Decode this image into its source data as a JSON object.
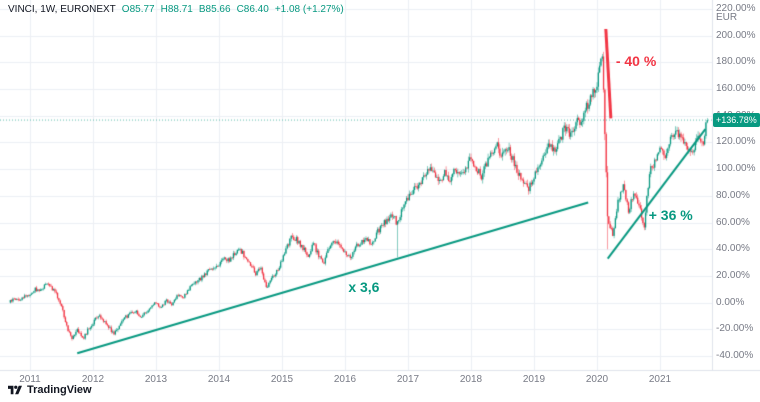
{
  "legend": {
    "symbol": "VINCI, 1W, EURONEXT",
    "open": "O85.77",
    "high": "H88.71",
    "low": "B85.66",
    "close": "C86.40",
    "change": "+1.08 (+1.27%)"
  },
  "axis": {
    "currency": "EUR"
  },
  "footer": {
    "logo_text": "TradingView"
  },
  "chart_data": {
    "type": "candlestick",
    "symbol": "VINCI",
    "interval": "1W",
    "exchange": "EURONEXT",
    "scale": "percent-change",
    "ylim": [
      -40,
      220
    ],
    "y_ticks": [
      {
        "value": 220,
        "label": "220.00%"
      },
      {
        "value": 200,
        "label": "200.00%"
      },
      {
        "value": 180,
        "label": "180.00%"
      },
      {
        "value": 160,
        "label": "160.00%"
      },
      {
        "value": 140,
        "label": "140.00%"
      },
      {
        "value": 120,
        "label": "120.00%"
      },
      {
        "value": 100,
        "label": "100.00%"
      },
      {
        "value": 80,
        "label": "80.00%"
      },
      {
        "value": 60,
        "label": "60.00%"
      },
      {
        "value": 40,
        "label": "40.00%"
      },
      {
        "value": 20,
        "label": "20.00%"
      },
      {
        "value": 0,
        "label": "0.00%"
      },
      {
        "value": -20,
        "label": "-20.00%"
      },
      {
        "value": -40,
        "label": "-40.00%"
      }
    ],
    "x_ticks": [
      {
        "value": 2011,
        "label": "2011"
      },
      {
        "value": 2012,
        "label": "2012"
      },
      {
        "value": 2013,
        "label": "2013"
      },
      {
        "value": 2014,
        "label": "2014"
      },
      {
        "value": 2015,
        "label": "2015"
      },
      {
        "value": 2016,
        "label": "2016"
      },
      {
        "value": 2017,
        "label": "2017"
      },
      {
        "value": 2018,
        "label": "2018"
      },
      {
        "value": 2019,
        "label": "2019"
      },
      {
        "value": 2020,
        "label": "2020"
      },
      {
        "value": 2021,
        "label": "2021"
      }
    ],
    "ohlc": {
      "open": 85.77,
      "high": 88.71,
      "low": 85.66,
      "close": 86.4,
      "change": 1.08,
      "change_pct": 1.27
    },
    "current_value": 136.78,
    "current_value_label": "+136.78%",
    "monthly_closes_pct": {
      "start": "2010-09",
      "values": [
        0,
        3,
        2,
        5,
        6,
        10,
        9,
        14,
        12,
        6,
        -2,
        -18,
        -26,
        -19,
        -27,
        -21,
        -15,
        -10,
        -13,
        -18,
        -23,
        -17,
        -12,
        -8,
        -6,
        -11,
        -7,
        -4,
        0,
        -4,
        2,
        -2,
        6,
        3,
        9,
        13,
        16,
        20,
        24,
        26,
        29,
        34,
        31,
        37,
        40,
        34,
        28,
        22,
        26,
        11,
        19,
        23,
        31,
        42,
        50,
        46,
        41,
        35,
        44,
        35,
        31,
        41,
        47,
        43,
        37,
        33,
        42,
        45,
        49,
        42,
        52,
        57,
        62,
        66,
        59,
        71,
        78,
        84,
        88,
        94,
        100,
        96,
        91,
        97,
        93,
        101,
        96,
        99,
        108,
        101,
        95,
        104,
        112,
        117,
        110,
        116,
        107,
        96,
        89,
        85,
        94,
        103,
        112,
        118,
        115,
        124,
        131,
        127,
        136,
        133,
        147,
        155,
        165,
        188,
        62,
        52,
        75,
        88,
        70,
        80,
        73,
        58,
        98,
        106,
        114,
        109,
        122,
        130,
        124,
        117,
        111,
        124,
        117,
        136.78
      ]
    },
    "wick_low_overrides": [
      {
        "month_index": 74,
        "low_pct": 34
      },
      {
        "month_index": 114,
        "low_pct": 40
      }
    ],
    "trendlines": [
      {
        "name": "long-uptrend",
        "from": {
          "year": 2011.75,
          "pct": -38
        },
        "to": {
          "year": 2019.86,
          "pct": 75
        },
        "color": "#089981",
        "width": 2
      },
      {
        "name": "rebound-uptrend",
        "from": {
          "year": 2020.17,
          "pct": 33
        },
        "to": {
          "year": 2021.72,
          "pct": 130
        },
        "color": "#089981",
        "width": 2
      }
    ],
    "arrow": {
      "name": "crash-drop-line",
      "from": {
        "year": 2020.14,
        "pct": 205
      },
      "to": {
        "year": 2020.22,
        "pct": 138
      },
      "color": "#f23645",
      "width": 3
    },
    "annotations": [
      {
        "text": "- 40 %",
        "year": 2020.62,
        "pct": 181,
        "color": "#f23645"
      },
      {
        "text": "x 3,6",
        "year": 2016.3,
        "pct": 12,
        "color": "#089981"
      },
      {
        "text": "+ 36 %",
        "year": 2021.17,
        "pct": 66,
        "color": "#089981"
      }
    ],
    "colors": {
      "up": "#089981",
      "down": "#f23645",
      "grid": "#eceff5",
      "axis_border": "#e0e3eb",
      "axis_text": "#787b86",
      "background": "#ffffff",
      "price_line": "#089981"
    }
  }
}
